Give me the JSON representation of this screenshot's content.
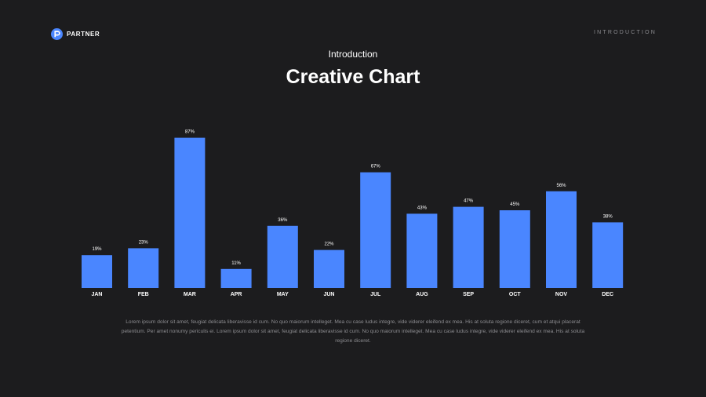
{
  "header": {
    "logo_text": "PARTNER",
    "section_label": "INTRODUCTION"
  },
  "slide": {
    "subtitle": "Introduction",
    "title": "Creative Chart",
    "body": "Lorem ipsum dolor sit amet, feugiat delicata liberavisse id cum. No quo maiorum intelleget. Mea cu case ludus integre, vide viderer eleifend ex mea. His at soluta regione diceret, cum et atqui placerat petentium. Per amet nonumy periculis ei. Lorem ipsum dolor sit amet, feugiat delicata liberavisse id cum. No quo maiorum intelleget. Mea cu case ludus integre, vide viderer eleifend ex mea. His at soluta regione diceret."
  },
  "colors": {
    "accent": "#4a86ff",
    "background": "#1c1c1e"
  },
  "chart_data": {
    "type": "bar",
    "categories": [
      "JAN",
      "FEB",
      "MAR",
      "APR",
      "MAY",
      "JUN",
      "JUL",
      "AUG",
      "SEP",
      "OCT",
      "NOV",
      "DEC"
    ],
    "values": [
      19,
      23,
      87,
      11,
      36,
      22,
      67,
      43,
      47,
      45,
      56,
      38
    ],
    "data_labels": [
      "19%",
      "23%",
      "87%",
      "11%",
      "36%",
      "22%",
      "67%",
      "43%",
      "47%",
      "45%",
      "56%",
      "38%"
    ],
    "ylim": [
      0,
      100
    ],
    "grid": false,
    "legend": "none"
  }
}
